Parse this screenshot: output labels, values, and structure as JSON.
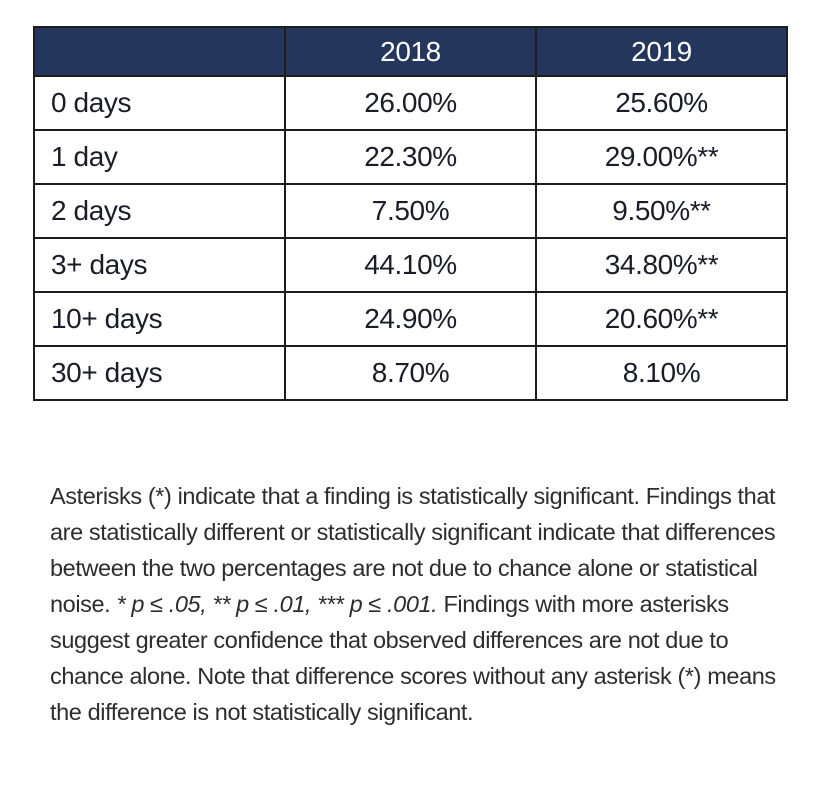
{
  "theme": {
    "header-bg": "#24365C",
    "header-text": "#ffffff",
    "border": "#1d1d1d",
    "body-text": "#191d28",
    "note-text": "#2d2d2d",
    "page-bg": "#ffffff"
  },
  "table": {
    "columns": [
      "",
      "2018",
      "2019"
    ],
    "rows": [
      {
        "label": "0 days",
        "y2018": "26.00%",
        "y2019": "25.60%"
      },
      {
        "label": "1 day",
        "y2018": "22.30%",
        "y2019": "29.00%**"
      },
      {
        "label": "2 days",
        "y2018": "7.50%",
        "y2019": "9.50%**"
      },
      {
        "label": "3+ days",
        "y2018": "44.10%",
        "y2019": "34.80%**"
      },
      {
        "label": "10+ days",
        "y2018": "24.90%",
        "y2019": "20.60%**"
      },
      {
        "label": "30+ days",
        "y2018": "8.70%",
        "y2019": "8.10%"
      }
    ]
  },
  "note": {
    "part1": "Asterisks (*) indicate that a finding is statistically significant.  Findings that are statistically different or statistically significant indicate that differences between the two percentages are not due to chance alone or statistical noise.  ",
    "pvalues_italic": "* p ≤ .05, ** p ≤ .01, *** p ≤ .001.",
    "part2": "  Findings with more asterisks suggest greater confidence that observed differences are not due to chance alone.  Note that difference scores without any asterisk (*) means the difference is not statistically significant."
  }
}
